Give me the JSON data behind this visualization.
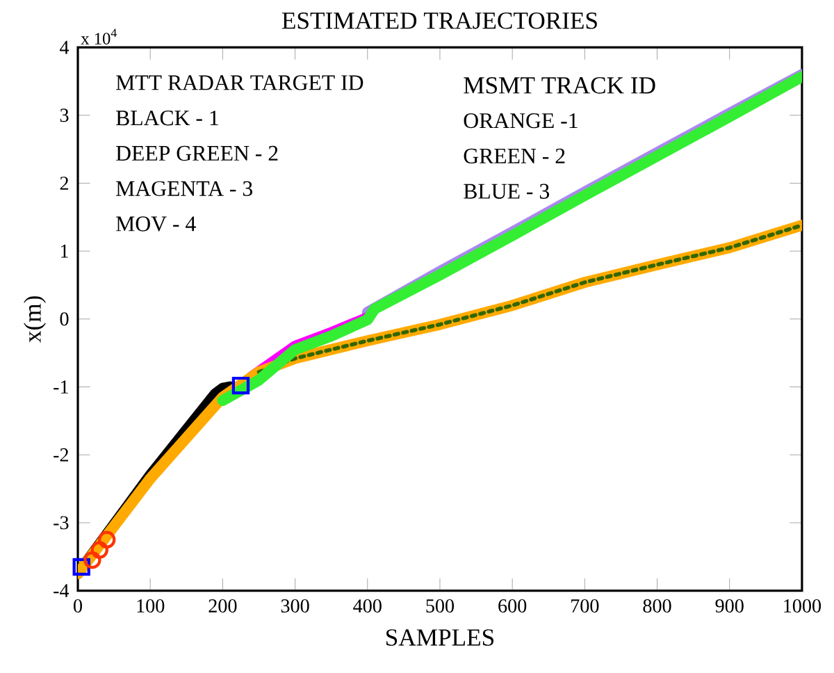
{
  "chart_data": {
    "type": "line",
    "title": "ESTIMATED TRAJECTORIES",
    "xlabel": "SAMPLES",
    "ylabel": "x(m)",
    "xlim": [
      0,
      1000
    ],
    "ylim": [
      -4,
      4
    ],
    "xticks": [
      0,
      100,
      200,
      300,
      400,
      500,
      600,
      700,
      800,
      900,
      1000
    ],
    "yticks": [
      -4,
      -3,
      -2,
      -1,
      0,
      1,
      2,
      3,
      4
    ],
    "grid": false,
    "annotations": [
      "x 10$^{4}$",
      "MTT  RADAR TARGET  ID",
      "BLACK - 1",
      "DEEP GREEN - 2",
      "MAGENTA - 3",
      "MOV - 4",
      "MSMT TRACK   ID",
      "ORANGE -1",
      "GREEN - 2",
      "BLUE - 3"
    ],
    "series": [
      {
        "color": "#000000",
        "marker": "none",
        "x": [
          0,
          100,
          190,
          200,
          210
        ],
        "values": [
          -3.75,
          -2.3,
          -1.1,
          -1.02,
          -1.0
        ]
      },
      {
        "color": "#aa88ee",
        "marker": "none",
        "x": [
          400,
          500,
          600,
          700,
          800,
          900,
          1000
        ],
        "values": [
          0.1,
          0.7,
          1.28,
          1.87,
          2.45,
          3.03,
          3.6
        ]
      },
      {
        "color": "#ff00ff",
        "marker": "none",
        "x": [
          240,
          300,
          350,
          400
        ],
        "values": [
          -0.85,
          -0.4,
          -0.2,
          0.02
        ]
      },
      {
        "color": "#ffaa00",
        "marker": "none",
        "x": [
          0,
          50,
          100,
          150,
          200,
          250,
          300,
          350,
          400,
          450,
          500,
          600,
          700,
          800,
          900,
          1000
        ],
        "values": [
          -3.75,
          -3.05,
          -2.35,
          -1.75,
          -1.15,
          -0.78,
          -0.58,
          -0.45,
          -0.32,
          -0.2,
          -0.08,
          0.2,
          0.54,
          0.8,
          1.05,
          1.38
        ]
      },
      {
        "color": "#336600",
        "marker": "none",
        "line_style": "dotted",
        "x": [
          250,
          300,
          350,
          400,
          450,
          500,
          600,
          700,
          800,
          900,
          1000
        ],
        "values": [
          -0.78,
          -0.58,
          -0.45,
          -0.32,
          -0.2,
          -0.08,
          0.2,
          0.54,
          0.8,
          1.05,
          1.38
        ]
      },
      {
        "color": "#33ee33",
        "marker": "none",
        "x": [
          200,
          250,
          300,
          350,
          400,
          410,
          500,
          600,
          700,
          800,
          900,
          1000
        ],
        "values": [
          -1.2,
          -0.9,
          -0.45,
          -0.25,
          -0.01,
          0.15,
          0.65,
          1.23,
          1.82,
          2.4,
          2.98,
          3.57
        ]
      },
      {
        "type": "scatter",
        "color": "#0000ff",
        "marker": "square",
        "x": [
          5,
          225
        ],
        "values": [
          -3.65,
          -0.98
        ]
      },
      {
        "type": "scatter",
        "color": "#ff3300",
        "marker": "circle",
        "x": [
          20,
          30,
          40
        ],
        "values": [
          -3.55,
          -3.4,
          -3.25
        ]
      }
    ]
  }
}
